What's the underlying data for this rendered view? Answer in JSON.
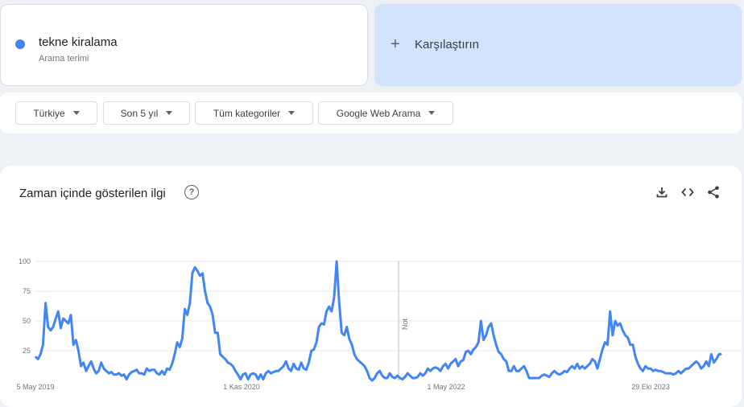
{
  "search_term": {
    "name": "tekne kiralama",
    "type_label": "Arama terimi",
    "color": "#4285f4"
  },
  "compare": {
    "label": "Karşılaştırın"
  },
  "filters": [
    {
      "label": "Türkiye"
    },
    {
      "label": "Son 5 yıl"
    },
    {
      "label": "Tüm kategoriler"
    },
    {
      "label": "Google Web Arama"
    }
  ],
  "chart_panel": {
    "title": "Zaman içinde gösterilen ilgi",
    "actions": [
      "download-icon",
      "embed-code-icon",
      "share-icon"
    ]
  },
  "chart_data": {
    "type": "line",
    "title": "Zaman içinde gösterilen ilgi",
    "yticks": [
      "100",
      "75",
      "50",
      "25"
    ],
    "ylim": [
      0,
      100
    ],
    "xticks": [
      "5 May 2019",
      "1 Kas 2020",
      "1 May 2022",
      "29 Eki 2023"
    ],
    "annotation": "Not",
    "line_color": "#4285f4",
    "grid": true,
    "series": [
      {
        "values": [
          20,
          18,
          22,
          30,
          65,
          45,
          42,
          45,
          52,
          58,
          44,
          52,
          50,
          48,
          55,
          30,
          34,
          25,
          12,
          15,
          8,
          12,
          16,
          10,
          6,
          8,
          15,
          10,
          8,
          6,
          7,
          5,
          5,
          6,
          4,
          5,
          1,
          5,
          7,
          8,
          9,
          6,
          6,
          5,
          10,
          8,
          9,
          9,
          6,
          5,
          8,
          5,
          10,
          9,
          14,
          22,
          32,
          28,
          35,
          60,
          55,
          65,
          90,
          95,
          92,
          88,
          90,
          75,
          65,
          62,
          55,
          40,
          40,
          22,
          20,
          18,
          15,
          14,
          12,
          8,
          5,
          1,
          5,
          6,
          1,
          5,
          6,
          5,
          1,
          5,
          1,
          6,
          8,
          6,
          7,
          8,
          8,
          10,
          12,
          16,
          10,
          8,
          14,
          10,
          9,
          15,
          10,
          9,
          15,
          25,
          26,
          32,
          45,
          48,
          47,
          58,
          62,
          58,
          70,
          100,
          65,
          40,
          38,
          45,
          35,
          30,
          22,
          18,
          16,
          14,
          12,
          8,
          2,
          0,
          2,
          6,
          8,
          4,
          2,
          2,
          6,
          3,
          2,
          4,
          2,
          1,
          3,
          6,
          4,
          2,
          2,
          3,
          6,
          4,
          6,
          10,
          8,
          10,
          11,
          10,
          8,
          12,
          14,
          10,
          14,
          16,
          18,
          12,
          16,
          17,
          24,
          25,
          22,
          26,
          28,
          32,
          50,
          34,
          38,
          45,
          48,
          38,
          30,
          24,
          22,
          18,
          16,
          8,
          8,
          12,
          8,
          8,
          10,
          12,
          8,
          2,
          2,
          2,
          2,
          2,
          4,
          5,
          4,
          3,
          6,
          8,
          6,
          5,
          6,
          8,
          7,
          10,
          12,
          10,
          14,
          10,
          12,
          10,
          12,
          14,
          18,
          16,
          10,
          18,
          26,
          32,
          30,
          58,
          38,
          50,
          46,
          48,
          42,
          38,
          36,
          30,
          30,
          20,
          14,
          10,
          8,
          12,
          10,
          10,
          8,
          9,
          8,
          8,
          7,
          6,
          6,
          6,
          5,
          6,
          8,
          6,
          8,
          10,
          10,
          12,
          14,
          16,
          14,
          10,
          12,
          16,
          12,
          22,
          15,
          18,
          22,
          22
        ]
      }
    ]
  }
}
